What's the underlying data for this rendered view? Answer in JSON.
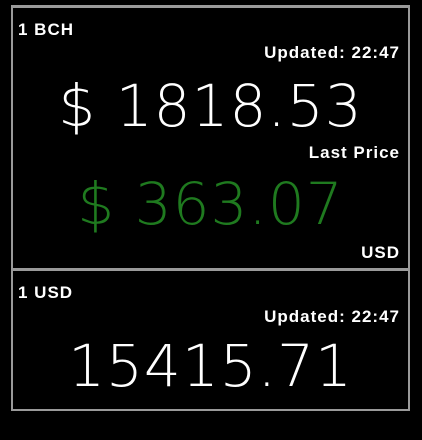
{
  "colors": {
    "background": "#000000",
    "border": "#9a9a9a",
    "text": "#ffffff",
    "last_price": "#1f7a1f"
  },
  "bch_panel": {
    "unit_label": "1 BCH",
    "updated_label": "Updated: 22:47",
    "price": "$ 1818.53",
    "last_price_label": "Last Price",
    "last_price": "$ 363.07",
    "currency_label": "USD"
  },
  "usd_panel": {
    "unit_label": "1 USD",
    "updated_label": "Updated: 22:47",
    "value": "15415.71"
  }
}
